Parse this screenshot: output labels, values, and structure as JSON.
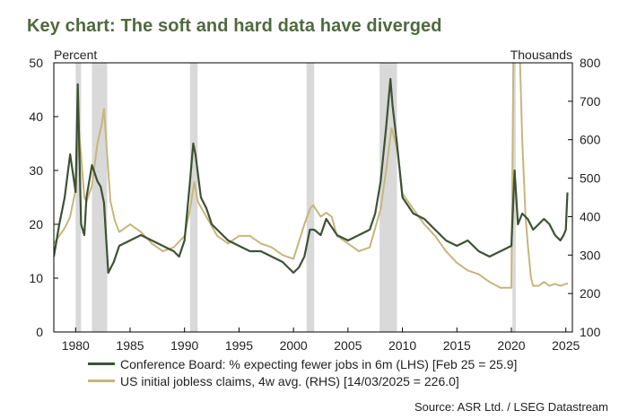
{
  "title": "Key chart: The soft and hard data have diverged",
  "source": "Source: ASR Ltd. / LSEG Datastream",
  "colors": {
    "series1": "#3d5233",
    "series2": "#c6b67c",
    "recession": "#d9d9d9",
    "title": "#4f6a3c"
  },
  "chart_data": {
    "type": "line",
    "left_axis": {
      "unit_label": "Percent",
      "ylim": [
        0,
        50
      ],
      "ticks": [
        "0",
        "10",
        "20",
        "30",
        "40",
        "50"
      ]
    },
    "right_axis": {
      "unit_label": "Thousands",
      "ylim": [
        100,
        800
      ],
      "ticks": [
        "100",
        "200",
        "300",
        "400",
        "500",
        "600",
        "700",
        "800"
      ]
    },
    "x_axis": {
      "xlim": [
        1978,
        2025.6
      ],
      "ticks": [
        "1980",
        "1985",
        "1990",
        "1995",
        "2000",
        "2005",
        "2010",
        "2015",
        "2020",
        "2025"
      ]
    },
    "recessions": [
      [
        1980.0,
        1980.5
      ],
      [
        1981.5,
        1982.9
      ],
      [
        1990.5,
        1991.2
      ],
      [
        2001.2,
        2001.9
      ],
      [
        2007.9,
        2009.5
      ],
      [
        2020.1,
        2020.4
      ]
    ],
    "legend": [
      "Conference Board: % expecting fewer jobs in 6m (LHS) [Feb 25 = 25.9]",
      "US initial jobless claims, 4w avg. (RHS) [14/03/2025 = 226.0]"
    ],
    "series": [
      {
        "axis": "left",
        "x": [
          1978.0,
          1978.5,
          1979.0,
          1979.5,
          1980.0,
          1980.2,
          1980.5,
          1980.8,
          1981.0,
          1981.5,
          1982.0,
          1982.3,
          1982.6,
          1983.0,
          1983.5,
          1984.0,
          1985.0,
          1986.0,
          1987.0,
          1988.0,
          1989.0,
          1989.5,
          1990.0,
          1990.5,
          1990.8,
          1991.0,
          1991.5,
          1992.0,
          1992.5,
          1993.0,
          1994.0,
          1995.0,
          1996.0,
          1997.0,
          1998.0,
          1999.0,
          2000.0,
          2000.5,
          2001.0,
          2001.5,
          2001.9,
          2002.5,
          2003.0,
          2004.0,
          2005.0,
          2006.0,
          2007.0,
          2007.5,
          2008.0,
          2008.5,
          2008.9,
          2009.1,
          2009.5,
          2010.0,
          2011.0,
          2012.0,
          2013.0,
          2014.0,
          2015.0,
          2016.0,
          2017.0,
          2018.0,
          2019.0,
          2020.0,
          2020.3,
          2020.6,
          2021.0,
          2021.5,
          2022.0,
          2022.5,
          2023.0,
          2023.5,
          2024.0,
          2024.5,
          2024.8,
          2025.0,
          2025.15
        ],
        "values": [
          14,
          20,
          25,
          33,
          26,
          46,
          20,
          18,
          25,
          31,
          28,
          27,
          24,
          11,
          13,
          16,
          17,
          18,
          17,
          16,
          15,
          14,
          17,
          28,
          35,
          33,
          25,
          23,
          20,
          19,
          17,
          16,
          15,
          15,
          14,
          13,
          11,
          12,
          14,
          19,
          19,
          18,
          21,
          18,
          17,
          18,
          19,
          22,
          28,
          38,
          47,
          42,
          35,
          25,
          22,
          21,
          19,
          17,
          16,
          17,
          15,
          14,
          15,
          16,
          30,
          20,
          22,
          21,
          19,
          20,
          21,
          20,
          18,
          17,
          18,
          19,
          25.9
        ]
      },
      {
        "axis": "right",
        "x": [
          1978.0,
          1978.5,
          1979.0,
          1979.5,
          1980.0,
          1980.3,
          1980.5,
          1980.8,
          1981.0,
          1981.5,
          1982.0,
          1982.4,
          1982.6,
          1982.9,
          1983.2,
          1983.6,
          1984.0,
          1985.0,
          1986.0,
          1987.0,
          1988.0,
          1989.0,
          1990.0,
          1990.5,
          1990.9,
          1991.2,
          1991.6,
          1992.0,
          1993.0,
          1994.0,
          1995.0,
          1996.0,
          1997.0,
          1998.0,
          1999.0,
          2000.0,
          2001.0,
          2001.5,
          2001.8,
          2002.5,
          2003.0,
          2003.5,
          2004.0,
          2005.0,
          2006.0,
          2007.0,
          2008.0,
          2008.5,
          2009.0,
          2009.2,
          2009.6,
          2010.0,
          2011.0,
          2012.0,
          2013.0,
          2014.0,
          2015.0,
          2016.0,
          2017.0,
          2018.0,
          2019.0,
          2020.0,
          2020.2,
          2020.25,
          2020.6,
          2020.8,
          2021.0,
          2021.3,
          2021.5,
          2021.8,
          2022.0,
          2022.5,
          2023.0,
          2023.5,
          2024.0,
          2024.5,
          2025.0,
          2025.2
        ],
        "values": [
          330,
          350,
          370,
          400,
          470,
          620,
          560,
          450,
          440,
          480,
          590,
          640,
          680,
          560,
          440,
          390,
          360,
          380,
          360,
          330,
          310,
          320,
          350,
          420,
          490,
          440,
          420,
          400,
          350,
          330,
          350,
          350,
          330,
          320,
          300,
          290,
          380,
          420,
          430,
          400,
          410,
          400,
          350,
          330,
          310,
          320,
          420,
          520,
          630,
          610,
          560,
          460,
          420,
          380,
          350,
          310,
          280,
          260,
          250,
          230,
          215,
          215,
          850,
          850,
          850,
          800,
          600,
          400,
          330,
          240,
          220,
          220,
          230,
          220,
          225,
          220,
          225,
          226
        ]
      }
    ]
  }
}
